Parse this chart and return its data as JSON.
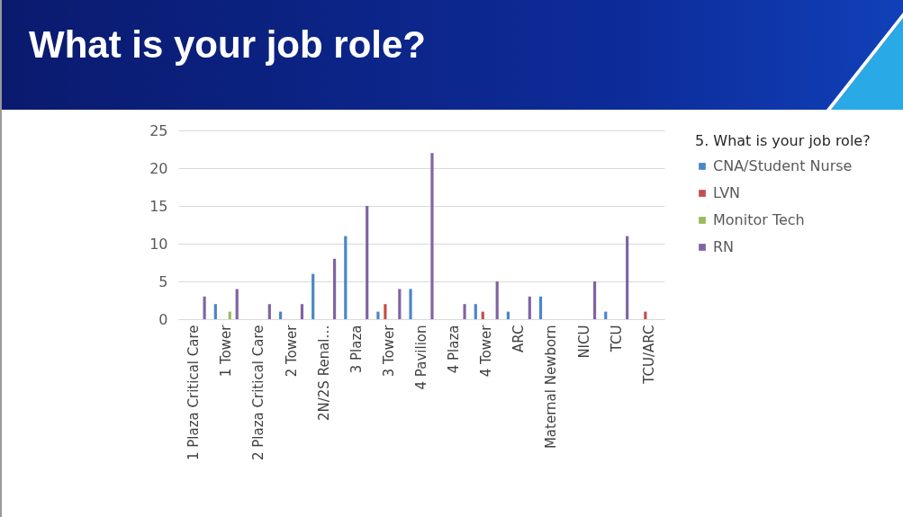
{
  "chart_data": {
    "type": "bar",
    "title": "What is your job role?",
    "legend_title": "5. What is your job role?",
    "categories": [
      "1 Plaza Critical Care",
      "1 Tower",
      "2 Plaza Critical Care",
      "2 Tower",
      "2N/2S Renal…",
      "3 Plaza",
      "3 Tower",
      "4 Pavilion",
      "4 Plaza",
      "4 Tower",
      "ARC",
      "Maternal Newborn",
      "NICU",
      "TCU",
      "TCU/ARC"
    ],
    "series": [
      {
        "name": "CNA/Student Nurse",
        "color": "#4a86c8",
        "values": [
          null,
          2,
          null,
          1,
          6,
          11,
          1,
          4,
          null,
          2,
          1,
          3,
          null,
          1,
          null
        ]
      },
      {
        "name": "LVN",
        "color": "#c0504d",
        "values": [
          null,
          null,
          null,
          null,
          null,
          null,
          2,
          null,
          null,
          1,
          null,
          null,
          null,
          null,
          1
        ]
      },
      {
        "name": "Monitor Tech",
        "color": "#9bbb59",
        "values": [
          null,
          1,
          null,
          null,
          null,
          null,
          null,
          null,
          null,
          null,
          null,
          null,
          null,
          null,
          null
        ]
      },
      {
        "name": "RN",
        "color": "#8064a2",
        "values": [
          3,
          4,
          2,
          2,
          8,
          15,
          4,
          22,
          2,
          5,
          3,
          null,
          5,
          11,
          null
        ]
      }
    ],
    "ylim": [
      0,
      25
    ],
    "yticks": [
      0,
      5,
      10,
      15,
      20,
      25
    ],
    "grid": "y",
    "legend": "right"
  }
}
